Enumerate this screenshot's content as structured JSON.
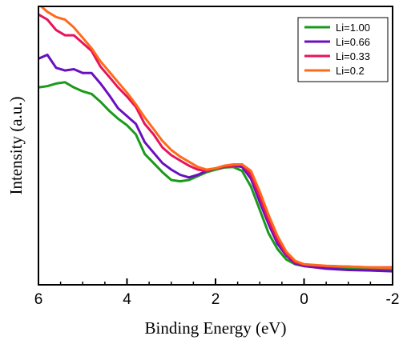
{
  "chart_data": {
    "type": "line",
    "title": "",
    "xlabel": "Binding Energy (eV)",
    "ylabel": "Intensity (a.u.)",
    "xlim": [
      6,
      -2
    ],
    "ylim": [
      0,
      100
    ],
    "x_reversed": true,
    "y_tick_labels": false,
    "x_ticks": [
      6,
      4,
      2,
      0,
      -2
    ],
    "x_tick_labels": [
      "6",
      "4",
      "2",
      "0",
      "-2"
    ],
    "grid": false,
    "legend_position": "top-right",
    "series": [
      {
        "name": "Li=1.00",
        "color": "#1a9a1a",
        "x": [
          6.0,
          5.8,
          5.6,
          5.4,
          5.2,
          5.0,
          4.8,
          4.6,
          4.4,
          4.2,
          4.0,
          3.8,
          3.6,
          3.4,
          3.2,
          3.0,
          2.8,
          2.6,
          2.4,
          2.2,
          2.0,
          1.8,
          1.6,
          1.4,
          1.2,
          1.0,
          0.8,
          0.6,
          0.4,
          0.2,
          0.0,
          -0.5,
          -1.0,
          -1.5,
          -2.0
        ],
        "y": [
          72,
          72.5,
          73.5,
          74,
          72,
          70.5,
          69.5,
          66.5,
          63,
          60,
          57.5,
          54,
          46.5,
          43,
          39.5,
          36.5,
          36,
          36.5,
          38,
          39.5,
          40.5,
          41.3,
          41.5,
          40,
          34,
          25,
          16,
          10,
          6,
          4.2,
          3.5,
          2.8,
          2.5,
          2.3,
          2.2
        ]
      },
      {
        "name": "Li=0.66",
        "color": "#6a0fbf",
        "x": [
          6.0,
          5.8,
          5.6,
          5.4,
          5.2,
          5.0,
          4.8,
          4.6,
          4.4,
          4.2,
          4.0,
          3.8,
          3.6,
          3.4,
          3.2,
          3.0,
          2.8,
          2.6,
          2.4,
          2.2,
          2.0,
          1.8,
          1.6,
          1.4,
          1.2,
          1.0,
          0.8,
          0.6,
          0.4,
          0.2,
          0.0,
          -0.5,
          -1.0,
          -1.5,
          -2.0
        ],
        "y": [
          83,
          84.5,
          79.5,
          78.5,
          79,
          77.5,
          77.5,
          73.5,
          69,
          64,
          61,
          58,
          51,
          47,
          43,
          40.5,
          38.5,
          37.5,
          38.5,
          40,
          41,
          41.5,
          42,
          41.5,
          37,
          28,
          19.5,
          12,
          7.5,
          4.5,
          3.5,
          2.5,
          2.0,
          1.8,
          1.5
        ]
      },
      {
        "name": "Li=0.33",
        "color": "#e8145a",
        "x": [
          6.0,
          5.8,
          5.6,
          5.4,
          5.2,
          5.0,
          4.8,
          4.6,
          4.4,
          4.2,
          4.0,
          3.8,
          3.6,
          3.4,
          3.2,
          3.0,
          2.8,
          2.6,
          2.4,
          2.2,
          2.0,
          1.8,
          1.6,
          1.4,
          1.2,
          1.0,
          0.8,
          0.6,
          0.4,
          0.2,
          0.0,
          -0.5,
          -1.0,
          -1.5,
          -2.0
        ],
        "y": [
          100,
          98,
          94,
          92,
          92,
          89,
          86,
          80,
          76,
          72,
          68.5,
          64.5,
          58,
          54,
          49,
          46,
          44,
          42,
          40.5,
          40,
          41,
          41.5,
          42,
          42.5,
          38.5,
          30,
          21,
          13.5,
          8,
          5,
          4,
          3.5,
          3.3,
          3.0,
          3.0
        ]
      },
      {
        "name": "Li=0.2",
        "color": "#ff6a1a",
        "x": [
          6.0,
          5.8,
          5.6,
          5.4,
          5.2,
          5.0,
          4.8,
          4.6,
          4.4,
          4.2,
          4.0,
          3.8,
          3.6,
          3.4,
          3.2,
          3.0,
          2.8,
          2.6,
          2.4,
          2.2,
          2.0,
          1.8,
          1.6,
          1.4,
          1.2,
          1.0,
          0.8,
          0.6,
          0.4,
          0.2,
          0.0,
          -0.5,
          -1.0,
          -1.5,
          -2.0
        ],
        "y": [
          104,
          101,
          99,
          98,
          95,
          91,
          87,
          82,
          78,
          74,
          70,
          65.5,
          60.5,
          56,
          51.5,
          48,
          45.5,
          43.5,
          41.5,
          40.5,
          41,
          42,
          42.5,
          42.5,
          40,
          32,
          23,
          15,
          9,
          5.5,
          4.2,
          3.6,
          3.3,
          3.0,
          2.8
        ]
      }
    ]
  }
}
